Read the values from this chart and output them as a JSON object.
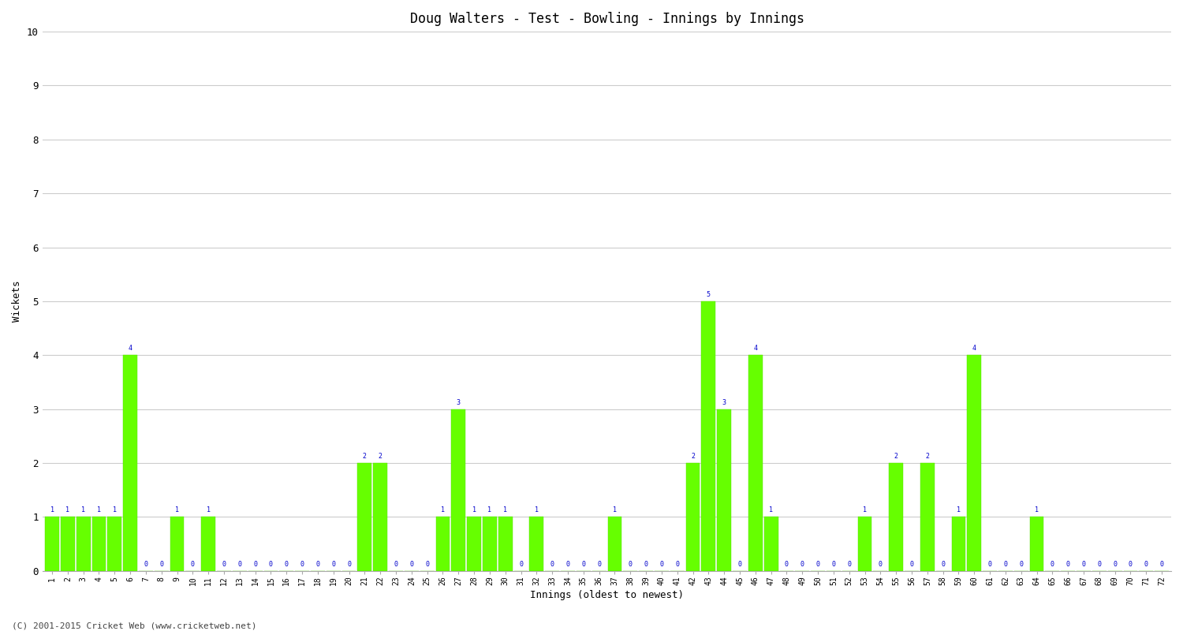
{
  "title": "Doug Walters - Test - Bowling - Innings by Innings",
  "xlabel": "Innings (oldest to newest)",
  "ylabel": "Wickets",
  "ylim": [
    0,
    10
  ],
  "yticks": [
    0,
    1,
    2,
    3,
    4,
    5,
    6,
    7,
    8,
    9,
    10
  ],
  "bar_color": "#66ff00",
  "bar_edge_color": "#55dd00",
  "label_color": "#0000cc",
  "background_color": "#ffffff",
  "grid_color": "#cccccc",
  "footer_text": "(C) 2001-2015 Cricket Web (www.cricketweb.net)",
  "innings": [
    1,
    2,
    3,
    4,
    5,
    6,
    7,
    8,
    9,
    10,
    11,
    12,
    13,
    14,
    15,
    16,
    17,
    18,
    19,
    20,
    21,
    22,
    23,
    24,
    25,
    26,
    27,
    28,
    29,
    30,
    31,
    32,
    33,
    34,
    35,
    36,
    37,
    38,
    39,
    40,
    41,
    42,
    43,
    44,
    45,
    46,
    47,
    48,
    49,
    50,
    51,
    52,
    53,
    54,
    55,
    56,
    57,
    58,
    59,
    60,
    61,
    62,
    63,
    64,
    65,
    66,
    67,
    68,
    69,
    70,
    71,
    72
  ],
  "wickets": [
    1,
    1,
    1,
    1,
    1,
    4,
    0,
    0,
    1,
    0,
    1,
    0,
    0,
    0,
    0,
    0,
    0,
    0,
    0,
    0,
    2,
    2,
    0,
    0,
    0,
    1,
    3,
    1,
    1,
    1,
    0,
    1,
    0,
    0,
    0,
    0,
    1,
    0,
    0,
    0,
    0,
    2,
    5,
    3,
    0,
    4,
    1,
    0,
    0,
    0,
    0,
    0,
    1,
    0,
    2,
    0,
    2,
    0,
    1,
    4,
    0,
    0,
    0,
    1,
    0,
    0,
    0,
    0,
    0,
    0,
    0,
    0
  ]
}
